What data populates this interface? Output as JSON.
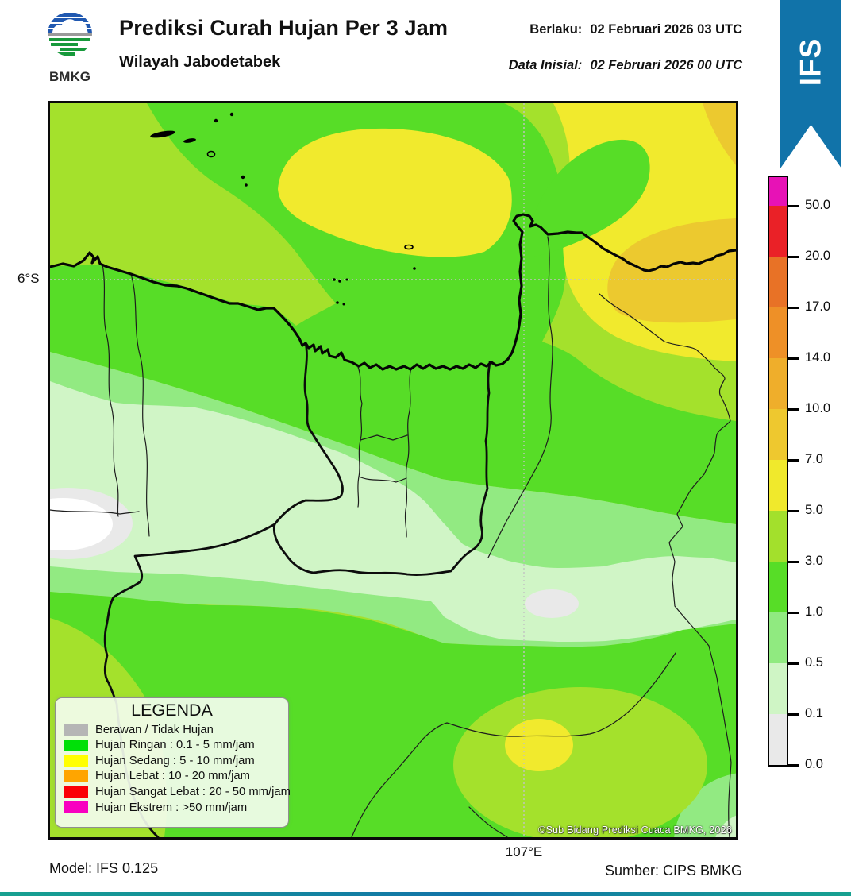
{
  "colors": {
    "yg": "#a4e12c",
    "g": "#57dd27",
    "lg": "#92ea82",
    "pg": "#d0f5c6",
    "w": "#ffffff",
    "gy": "#e9e9e9",
    "y": "#f1ea2d",
    "gold": "#ecc92f",
    "ribbon": "#1173a9"
  },
  "header": {
    "logo_text": "BMKG",
    "title": "Prediksi Curah Hujan Per 3 Jam",
    "subtitle": "Wilayah Jabodetabek",
    "valid_label": "Berlaku:",
    "valid_value": "02 Februari 2026 03 UTC",
    "init_label": "Data Inisial:",
    "init_value": "02 Februari 2026 00 UTC",
    "ribbon_label": "IFS"
  },
  "map": {
    "lat_label": "6°S",
    "lon_label": "107°E",
    "copyright": "©Sub Bidang Prediksi Cuaca BMKG, 2026"
  },
  "colorbar": {
    "unit": "mm/jam",
    "segments": [
      {
        "color": "#e712b6",
        "label": "50.0"
      },
      {
        "color": "#ea2127",
        "label": "20.0"
      },
      {
        "color": "#e87226",
        "label": "17.0"
      },
      {
        "color": "#ee9027",
        "label": "14.0"
      },
      {
        "color": "#efae2b",
        "label": "10.0"
      },
      {
        "color": "#eec82f",
        "label": "7.0"
      },
      {
        "color": "#f0e92c",
        "label": "5.0"
      },
      {
        "color": "#a3e02c",
        "label": "3.0"
      },
      {
        "color": "#57dd27",
        "label": "1.0"
      },
      {
        "color": "#90ea80",
        "label": "0.5"
      },
      {
        "color": "#cff5c5",
        "label": "0.1"
      },
      {
        "color": "#e9e9e9",
        "label": "0.0"
      }
    ]
  },
  "legend": {
    "title": "LEGENDA",
    "items": [
      {
        "color": "#b5b5b5",
        "label": "Berawan / Tidak Hujan"
      },
      {
        "color": "#00e008",
        "label": "Hujan Ringan : 0.1 - 5 mm/jam"
      },
      {
        "color": "#ffff00",
        "label": "Hujan Sedang : 5 - 10 mm/jam"
      },
      {
        "color": "#ffa500",
        "label": "Hujan Lebat : 10 - 20 mm/jam"
      },
      {
        "color": "#fb0007",
        "label": "Hujan Sangat Lebat : 20 - 50 mm/jam"
      },
      {
        "color": "#f800c0",
        "label": "Hujan Ekstrem : >50 mm/jam"
      }
    ]
  },
  "footer": {
    "model": "Model: IFS 0.125",
    "source": "Sumber: CIPS BMKG"
  }
}
